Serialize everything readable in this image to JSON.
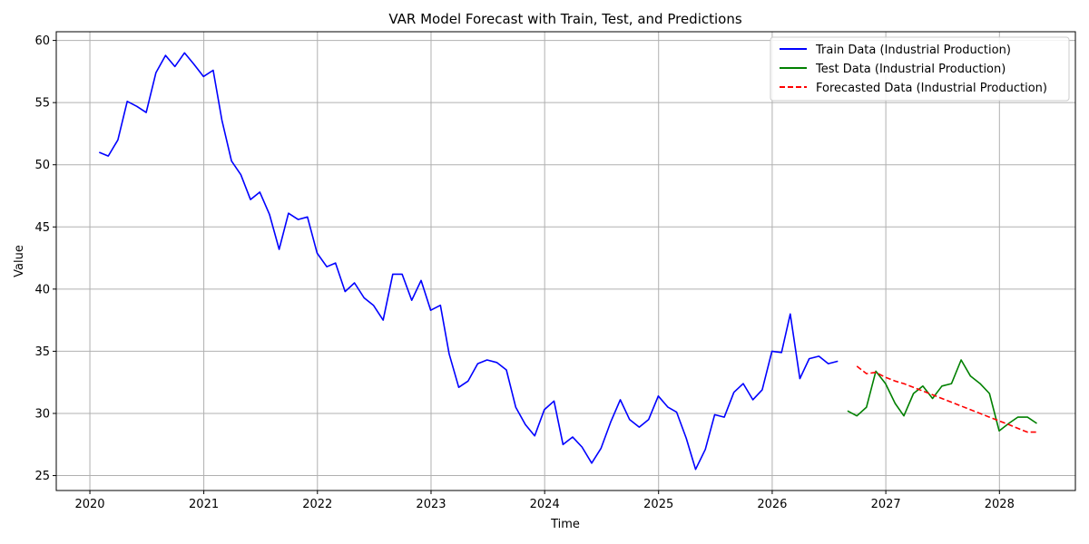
{
  "chart_data": {
    "type": "line",
    "title": "VAR Model Forecast with Train, Test, and Predictions",
    "xlabel": "Time",
    "ylabel": "Value",
    "xlim": [
      "2019-09-15",
      "2028-09-01"
    ],
    "ylim": [
      23.8,
      60.7
    ],
    "x_ticks": [
      "2020",
      "2021",
      "2022",
      "2023",
      "2024",
      "2025",
      "2026",
      "2027",
      "2028"
    ],
    "y_ticks": [
      25,
      30,
      35,
      40,
      45,
      50,
      55,
      60
    ],
    "grid": true,
    "legend_position": "top-right",
    "series": [
      {
        "name": "Train Data (Industrial Production)",
        "color": "#0000ff",
        "style": "solid",
        "x": [
          "2020-01-31",
          "2020-02-29",
          "2020-03-31",
          "2020-04-30",
          "2020-05-31",
          "2020-06-30",
          "2020-07-31",
          "2020-08-31",
          "2020-09-30",
          "2020-10-31",
          "2020-11-30",
          "2020-12-31",
          "2021-01-31",
          "2021-02-28",
          "2021-03-31",
          "2021-04-30",
          "2021-05-31",
          "2021-06-30",
          "2021-07-31",
          "2021-08-31",
          "2021-09-30",
          "2021-10-31",
          "2021-11-30",
          "2021-12-31",
          "2022-01-31",
          "2022-02-28",
          "2022-03-31",
          "2022-04-30",
          "2022-05-31",
          "2022-06-30",
          "2022-07-31",
          "2022-08-31",
          "2022-09-30",
          "2022-10-31",
          "2022-11-30",
          "2022-12-31",
          "2023-01-31",
          "2023-02-28",
          "2023-03-31",
          "2023-04-30",
          "2023-05-31",
          "2023-06-30",
          "2023-07-31",
          "2023-08-31",
          "2023-09-30",
          "2023-10-31",
          "2023-11-30",
          "2023-12-31",
          "2024-01-31",
          "2024-02-29",
          "2024-03-31",
          "2024-04-30",
          "2024-05-31",
          "2024-06-30",
          "2024-07-31",
          "2024-08-31",
          "2024-09-30",
          "2024-10-31",
          "2024-11-30",
          "2024-12-31",
          "2025-01-31",
          "2025-02-28",
          "2025-03-31",
          "2025-04-30",
          "2025-05-31",
          "2025-06-30",
          "2025-07-31",
          "2025-08-31",
          "2025-09-30",
          "2025-10-31",
          "2025-11-30",
          "2025-12-31",
          "2026-01-31",
          "2026-02-28",
          "2026-03-31",
          "2026-04-30",
          "2026-05-31",
          "2026-06-30",
          "2026-07-31"
        ],
        "values": [
          51.0,
          50.7,
          52.0,
          55.1,
          54.7,
          54.2,
          57.4,
          58.8,
          57.9,
          59.0,
          58.1,
          57.1,
          57.6,
          53.6,
          50.3,
          49.2,
          47.2,
          47.8,
          46.0,
          43.2,
          46.1,
          45.6,
          45.8,
          42.9,
          41.8,
          42.1,
          39.8,
          40.5,
          39.3,
          38.7,
          37.5,
          41.2,
          41.2,
          39.1,
          40.7,
          38.3,
          38.7,
          34.8,
          32.1,
          32.6,
          34.0,
          34.3,
          34.1,
          33.5,
          30.5,
          29.1,
          28.2,
          30.3,
          31.0,
          27.5,
          28.1,
          27.3,
          26.0,
          27.2,
          29.3,
          31.1,
          29.5,
          28.9,
          29.5,
          31.4,
          30.5,
          30.1,
          28.0,
          25.5,
          27.1,
          29.9,
          29.7,
          31.7,
          32.4,
          31.1,
          31.9,
          35.0,
          34.9,
          38.0,
          32.8,
          34.4,
          34.6,
          34.0,
          34.2
        ]
      },
      {
        "name": "Test Data (Industrial Production)",
        "color": "#008000",
        "style": "solid",
        "x": [
          "2026-08-31",
          "2026-09-30",
          "2026-10-31",
          "2026-11-30",
          "2026-12-31",
          "2027-01-31",
          "2027-02-28",
          "2027-03-31",
          "2027-04-30",
          "2027-05-31",
          "2027-06-30",
          "2027-07-31",
          "2027-08-31",
          "2027-09-30",
          "2027-10-31",
          "2027-11-30",
          "2027-12-31",
          "2028-01-31",
          "2028-02-29",
          "2028-03-31",
          "2028-04-30"
        ],
        "values": [
          30.2,
          29.8,
          30.5,
          33.4,
          32.4,
          30.8,
          29.8,
          31.6,
          32.2,
          31.2,
          32.2,
          32.4,
          34.3,
          33.0,
          32.4,
          31.6,
          28.6,
          29.2,
          29.7,
          29.7,
          29.2
        ]
      },
      {
        "name": "Forecasted Data (Industrial Production)",
        "color": "#ff0000",
        "style": "dashed",
        "x": [
          "2026-09-30",
          "2026-10-31",
          "2026-11-30",
          "2026-12-31",
          "2027-01-31",
          "2027-02-28",
          "2027-03-31",
          "2027-04-30",
          "2027-05-31",
          "2027-06-30",
          "2027-07-31",
          "2027-08-31",
          "2027-09-30",
          "2027-10-31",
          "2027-11-30",
          "2027-12-31",
          "2028-01-31",
          "2028-02-29",
          "2028-03-31",
          "2028-04-30"
        ],
        "values": [
          33.8,
          33.2,
          33.3,
          32.9,
          32.6,
          32.4,
          32.1,
          31.8,
          31.5,
          31.2,
          30.9,
          30.6,
          30.3,
          30.0,
          29.7,
          29.4,
          29.1,
          28.8,
          28.5,
          28.5
        ]
      }
    ]
  }
}
